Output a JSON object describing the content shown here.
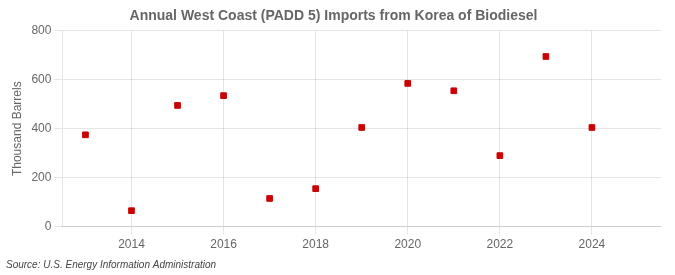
{
  "chart_data": {
    "type": "scatter",
    "title": "Annual West Coast (PADD 5) Imports from Korea of Biodiesel",
    "ylabel": "Thousand Barrels",
    "annotations": [
      "Source: U.S. Energy Information Administration"
    ],
    "x": [
      2013,
      2014,
      2015,
      2016,
      2017,
      2018,
      2019,
      2020,
      2021,
      2022,
      2023,
      2024
    ],
    "values": [
      375,
      65,
      495,
      535,
      115,
      155,
      405,
      585,
      555,
      290,
      695,
      405
    ],
    "xlim": [
      2012.5,
      2025.5
    ],
    "xticks": [
      2014,
      2016,
      2018,
      2020,
      2022,
      2024
    ],
    "ylim": [
      0,
      800
    ],
    "yticks": [
      0,
      200,
      400,
      600,
      800
    ],
    "color": "#cc0000",
    "marker": "square",
    "grid": true
  }
}
